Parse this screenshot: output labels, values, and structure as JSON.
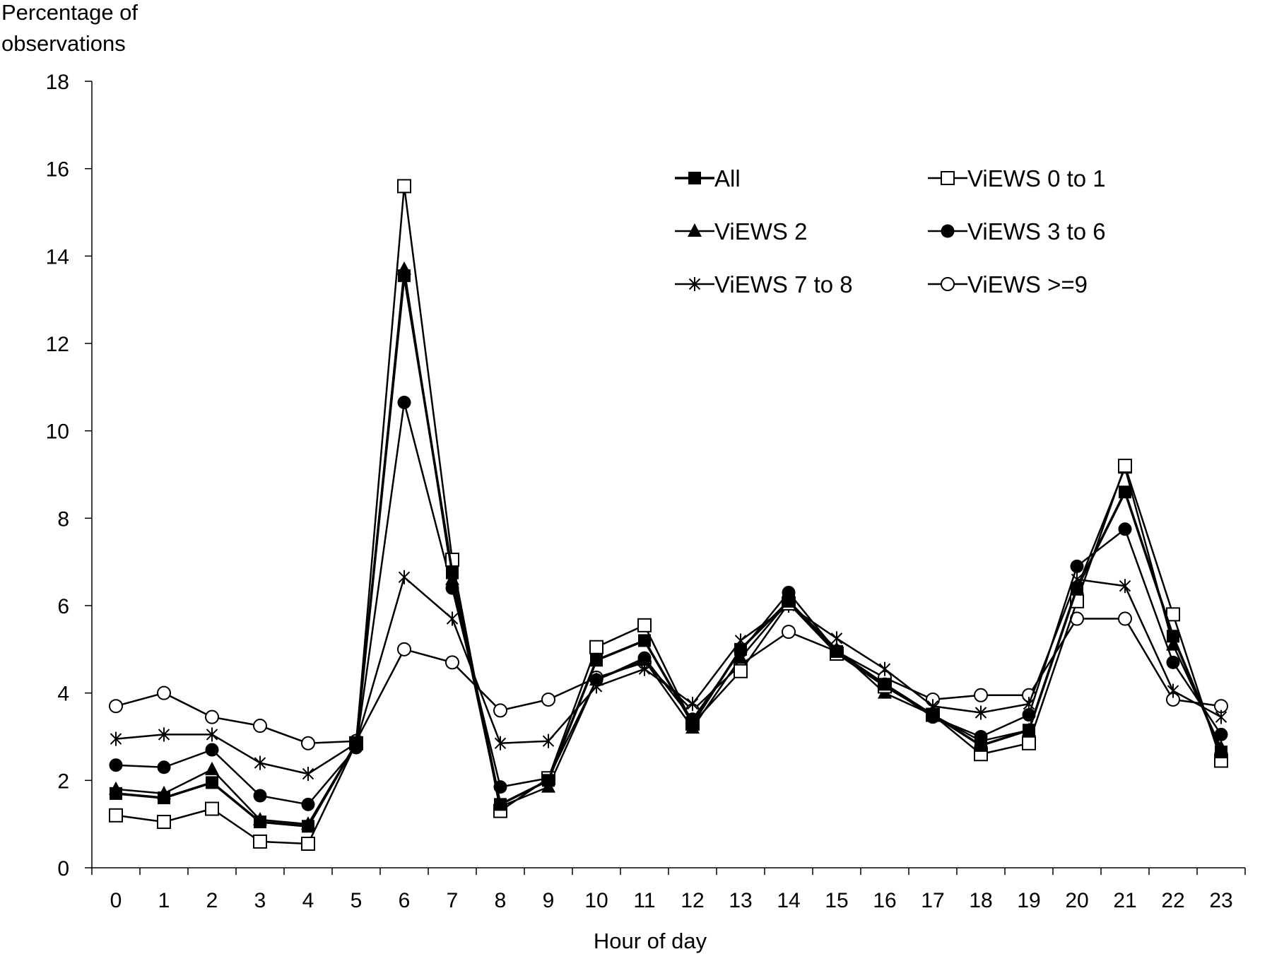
{
  "chart_data": {
    "type": "line",
    "title": "",
    "ylabel": "Percentage of observations",
    "xlabel": "Hour of day",
    "x": [
      0,
      1,
      2,
      3,
      4,
      5,
      6,
      7,
      8,
      9,
      10,
      11,
      12,
      13,
      14,
      15,
      16,
      17,
      18,
      19,
      20,
      21,
      22,
      23
    ],
    "ylim": [
      0,
      18
    ],
    "yticks": [
      0,
      2,
      4,
      6,
      8,
      10,
      12,
      14,
      16,
      18
    ],
    "grid": false,
    "legend_position": "top-right",
    "line_color": "#000000",
    "series": [
      {
        "name": "All",
        "marker": "filled-square",
        "values": [
          1.7,
          1.6,
          1.95,
          1.05,
          0.95,
          2.85,
          13.55,
          6.75,
          1.45,
          2.0,
          4.75,
          5.2,
          3.3,
          5.0,
          6.1,
          4.95,
          4.2,
          3.5,
          2.8,
          3.15,
          6.4,
          8.6,
          5.3,
          2.65
        ]
      },
      {
        "name": "ViEWS 0 to 1",
        "marker": "open-square",
        "values": [
          1.2,
          1.05,
          1.35,
          0.6,
          0.55,
          2.85,
          15.6,
          7.05,
          1.3,
          2.05,
          5.05,
          5.55,
          3.3,
          4.5,
          6.05,
          4.9,
          4.15,
          3.5,
          2.6,
          2.85,
          6.1,
          9.2,
          5.8,
          2.45
        ]
      },
      {
        "name": "ViEWS 2",
        "marker": "filled-triangle",
        "values": [
          1.8,
          1.7,
          2.25,
          1.1,
          1.0,
          2.85,
          13.7,
          6.6,
          1.4,
          1.85,
          4.3,
          4.75,
          3.2,
          4.8,
          6.1,
          5.0,
          4.0,
          3.5,
          2.9,
          3.15,
          6.4,
          9.15,
          5.1,
          2.75
        ]
      },
      {
        "name": "ViEWS 3 to 6",
        "marker": "filled-circle",
        "values": [
          2.35,
          2.3,
          2.7,
          1.65,
          1.45,
          2.75,
          10.65,
          6.4,
          1.85,
          2.05,
          4.3,
          4.8,
          3.4,
          4.95,
          6.3,
          4.95,
          4.2,
          3.45,
          3.0,
          3.5,
          6.9,
          7.75,
          4.7,
          3.05
        ]
      },
      {
        "name": "ViEWS 7 to 8",
        "marker": "asterisk",
        "values": [
          2.95,
          3.05,
          3.05,
          2.4,
          2.15,
          2.85,
          6.65,
          5.7,
          2.85,
          2.9,
          4.15,
          4.55,
          3.75,
          5.2,
          6.0,
          5.25,
          4.55,
          3.7,
          3.55,
          3.75,
          6.6,
          6.45,
          4.05,
          3.45
        ]
      },
      {
        "name": "ViEWS >=9",
        "marker": "open-circle",
        "values": [
          3.7,
          4.0,
          3.45,
          3.25,
          2.85,
          2.9,
          5.0,
          4.7,
          3.6,
          3.85,
          4.35,
          4.7,
          3.6,
          4.65,
          5.4,
          4.95,
          4.35,
          3.85,
          3.95,
          3.95,
          5.7,
          5.7,
          3.85,
          3.7
        ]
      }
    ]
  }
}
